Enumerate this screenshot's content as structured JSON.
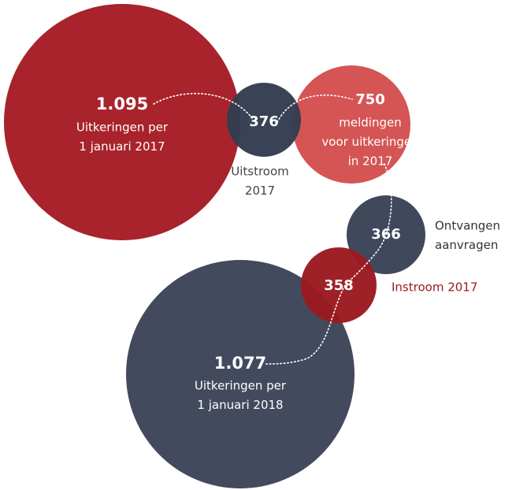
{
  "chart_data": {
    "type": "bubble",
    "values": [
      1095,
      376,
      750,
      366,
      358,
      1077
    ],
    "value_labels": [
      "1.095",
      "376",
      "750",
      "366",
      "358",
      "1.077"
    ],
    "labels": [
      [
        "Uitkeringen per",
        "1 januari 2017"
      ],
      [
        "Uitstroom",
        "2017"
      ],
      [
        "meldingen",
        "voor uitkeringen",
        "in 2017"
      ],
      [
        "Ontvangen",
        "aanvragen"
      ],
      [
        "Instroom 2017"
      ],
      [
        "Uitkeringen per",
        "1 januari 2018"
      ]
    ],
    "colors": [
      "#a51c24",
      "#333d50",
      "#d4504f",
      "#3a4257",
      "#9b1a20",
      "#3d4459"
    ]
  }
}
